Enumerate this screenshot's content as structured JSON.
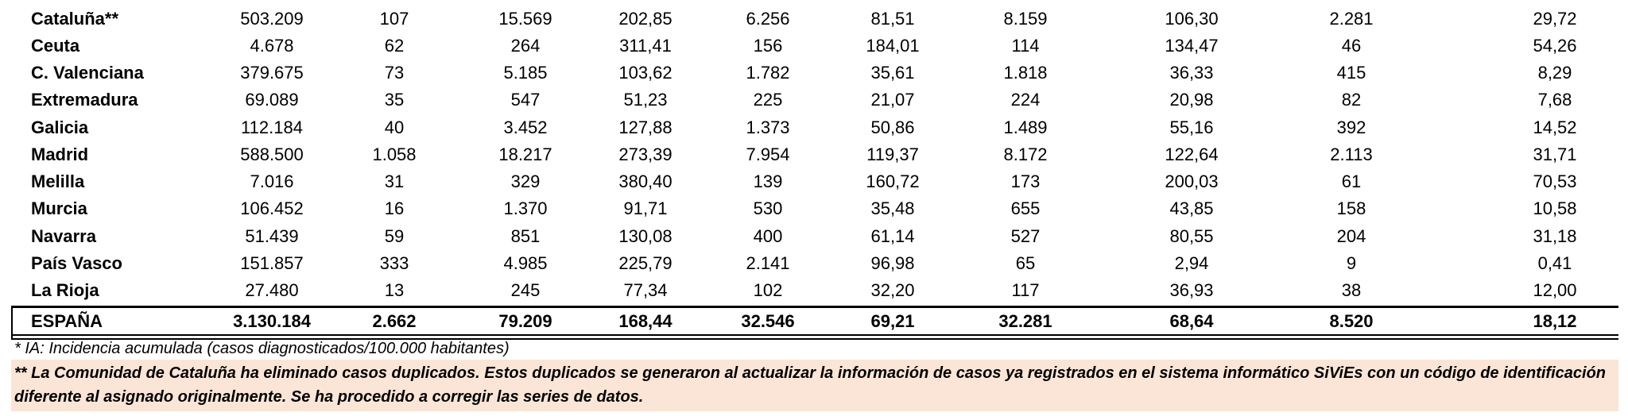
{
  "table": {
    "rows": [
      {
        "label": "Cataluña**",
        "cells": [
          "503.209",
          "107",
          "15.569",
          "202,85",
          "6.256",
          "81,51",
          "8.159",
          "106,30",
          "2.281",
          "29,72"
        ]
      },
      {
        "label": "Ceuta",
        "cells": [
          "4.678",
          "62",
          "264",
          "311,41",
          "156",
          "184,01",
          "114",
          "134,47",
          "46",
          "54,26"
        ]
      },
      {
        "label": "C. Valenciana",
        "cells": [
          "379.675",
          "73",
          "5.185",
          "103,62",
          "1.782",
          "35,61",
          "1.818",
          "36,33",
          "415",
          "8,29"
        ]
      },
      {
        "label": "Extremadura",
        "cells": [
          "69.089",
          "35",
          "547",
          "51,23",
          "225",
          "21,07",
          "224",
          "20,98",
          "82",
          "7,68"
        ]
      },
      {
        "label": "Galicia",
        "cells": [
          "112.184",
          "40",
          "3.452",
          "127,88",
          "1.373",
          "50,86",
          "1.489",
          "55,16",
          "392",
          "14,52"
        ]
      },
      {
        "label": "Madrid",
        "cells": [
          "588.500",
          "1.058",
          "18.217",
          "273,39",
          "7.954",
          "119,37",
          "8.172",
          "122,64",
          "2.113",
          "31,71"
        ]
      },
      {
        "label": "Melilla",
        "cells": [
          "7.016",
          "31",
          "329",
          "380,40",
          "139",
          "160,72",
          "173",
          "200,03",
          "61",
          "70,53"
        ]
      },
      {
        "label": "Murcia",
        "cells": [
          "106.452",
          "16",
          "1.370",
          "91,71",
          "530",
          "35,48",
          "655",
          "43,85",
          "158",
          "10,58"
        ]
      },
      {
        "label": "Navarra",
        "cells": [
          "51.439",
          "59",
          "851",
          "130,08",
          "400",
          "61,14",
          "527",
          "80,55",
          "204",
          "31,18"
        ]
      },
      {
        "label": "País Vasco",
        "cells": [
          "151.857",
          "333",
          "4.985",
          "225,79",
          "2.141",
          "96,98",
          "65",
          "2,94",
          "9",
          "0,41"
        ]
      },
      {
        "label": "La Rioja",
        "cells": [
          "27.480",
          "13",
          "245",
          "77,34",
          "102",
          "32,20",
          "117",
          "36,93",
          "38",
          "12,00"
        ]
      }
    ],
    "total": {
      "label": "ESPAÑA",
      "cells": [
        "3.130.184",
        "2.662",
        "79.209",
        "168,44",
        "32.546",
        "69,21",
        "32.281",
        "68,64",
        "8.520",
        "18,12"
      ]
    },
    "footnote": "* IA: Incidencia acumulada (casos diagnosticados/100.000 habitantes)",
    "note": "** La Comunidad de Cataluña ha eliminado casos duplicados. Estos duplicados se generaron al actualizar la  información de casos ya registrados en el sistema informático SiViEs con un código de identificación diferente al asignado originalmente. Se ha procedido a corregir las series de datos."
  }
}
